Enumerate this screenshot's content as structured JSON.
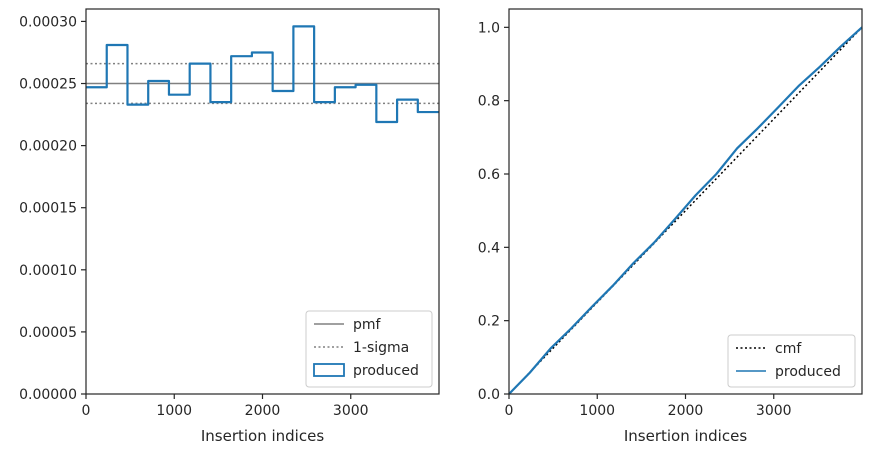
{
  "chart_data": [
    {
      "type": "step",
      "xlabel": "Insertion indices",
      "ylabel": "",
      "xlim": [
        0,
        4000
      ],
      "ylim": [
        0,
        0.00031
      ],
      "x_ticks": [
        0,
        1000,
        2000,
        3000
      ],
      "y_ticks": [
        0,
        5e-05,
        0.0001,
        0.00015,
        0.0002,
        0.00025,
        0.0003
      ],
      "y_tick_labels": [
        "0.00000",
        "0.00005",
        "0.00010",
        "0.00015",
        "0.00020",
        "0.00025",
        "0.00030"
      ],
      "legend": {
        "location": "lower right",
        "entries": [
          "pmf",
          "1-sigma",
          "produced"
        ]
      },
      "reference_lines": [
        {
          "name": "pmf",
          "style": "solid",
          "color": "#808080",
          "y": 0.00025
        },
        {
          "name": "1-sigma",
          "style": "dotted",
          "color": "#808080",
          "y": 0.000266
        },
        {
          "name": "1-sigma",
          "style": "dotted",
          "color": "#808080",
          "y": 0.000234
        }
      ],
      "series": [
        {
          "name": "produced",
          "color": "#1f77b4",
          "bin_edges": [
            0,
            235,
            470,
            705,
            940,
            1175,
            1410,
            1645,
            1880,
            2115,
            2350,
            2585,
            2820,
            3055,
            3290,
            3525,
            3760,
            4000
          ],
          "values": [
            0.000247,
            0.000281,
            0.000233,
            0.000252,
            0.000241,
            0.000266,
            0.000235,
            0.000272,
            0.000275,
            0.000244,
            0.000296,
            0.000235,
            0.000247,
            0.000249,
            0.000219,
            0.000237,
            0.000227
          ]
        }
      ]
    },
    {
      "type": "line",
      "xlabel": "Insertion indices",
      "ylabel": "",
      "xlim": [
        0,
        4000
      ],
      "ylim": [
        0,
        1.05
      ],
      "x_ticks": [
        0,
        1000,
        2000,
        3000
      ],
      "y_ticks": [
        0,
        0.2,
        0.4,
        0.6,
        0.8,
        1.0
      ],
      "y_tick_labels": [
        "0.0",
        "0.2",
        "0.4",
        "0.6",
        "0.8",
        "1.0"
      ],
      "legend": {
        "location": "lower right",
        "entries": [
          "cmf",
          "produced"
        ]
      },
      "series": [
        {
          "name": "cmf",
          "style": "dotted",
          "color": "#000000",
          "x": [
            0,
            4000
          ],
          "y": [
            0,
            1.0
          ]
        },
        {
          "name": "produced",
          "style": "solid",
          "color": "#1f77b4",
          "x": [
            0,
            235,
            470,
            705,
            940,
            1175,
            1410,
            1645,
            1880,
            2115,
            2350,
            2585,
            2820,
            3055,
            3290,
            3525,
            3760,
            4000
          ],
          "y": [
            0,
            0.058,
            0.124,
            0.179,
            0.238,
            0.295,
            0.357,
            0.413,
            0.477,
            0.542,
            0.6,
            0.67,
            0.725,
            0.783,
            0.842,
            0.893,
            0.948,
            1.0
          ]
        }
      ]
    }
  ]
}
